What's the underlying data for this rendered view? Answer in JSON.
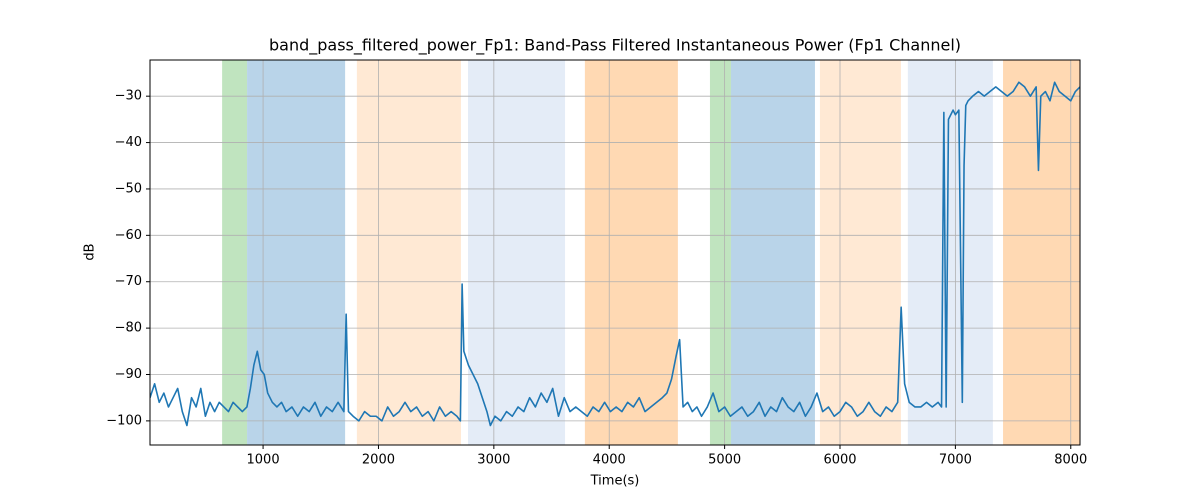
{
  "chart_data": {
    "type": "line",
    "title": "band_pass_filtered_power_Fp1: Band-Pass Filtered Instantaneous Power (Fp1 Channel)",
    "x_label": "Time(s)",
    "y_label": "dB",
    "xlim": [
      20,
      8080
    ],
    "ylim": [
      -105.2,
      -22.2
    ],
    "xticks": [
      1000,
      2000,
      3000,
      4000,
      5000,
      6000,
      7000,
      8000
    ],
    "yticks": [
      {
        "value": -100,
        "label": "−100"
      },
      {
        "value": -90,
        "label": "−90"
      },
      {
        "value": -80,
        "label": "−80"
      },
      {
        "value": -70,
        "label": "−70"
      },
      {
        "value": -60,
        "label": "−60"
      },
      {
        "value": -50,
        "label": "−50"
      },
      {
        "value": -40,
        "label": "−40"
      },
      {
        "value": -30,
        "label": "−30"
      }
    ],
    "grid": true,
    "spans": [
      {
        "start": 645,
        "end": 861,
        "color": "#c0e4bf"
      },
      {
        "start": 861,
        "end": 1711,
        "color": "#b9d4e9"
      },
      {
        "start": 1813,
        "end": 2715,
        "color": "#ffe9d4"
      },
      {
        "start": 2776,
        "end": 3617,
        "color": "#e4ecf7"
      },
      {
        "start": 3789,
        "end": 4595,
        "color": "#ffd9b3"
      },
      {
        "start": 4873,
        "end": 5055,
        "color": "#c0e4bf"
      },
      {
        "start": 5055,
        "end": 5783,
        "color": "#b9d4e9"
      },
      {
        "start": 5826,
        "end": 6528,
        "color": "#ffe9d4"
      },
      {
        "start": 6588,
        "end": 7325,
        "color": "#e4ecf7"
      },
      {
        "start": 7413,
        "end": 8080,
        "color": "#ffd9b3"
      }
    ],
    "x": [
      20,
      60,
      100,
      140,
      180,
      220,
      260,
      300,
      340,
      380,
      420,
      460,
      500,
      540,
      580,
      620,
      660,
      700,
      740,
      780,
      820,
      860,
      890,
      920,
      950,
      980,
      1010,
      1040,
      1080,
      1120,
      1160,
      1200,
      1250,
      1300,
      1350,
      1400,
      1450,
      1500,
      1550,
      1600,
      1650,
      1700,
      1720,
      1740,
      1780,
      1830,
      1880,
      1930,
      1980,
      2030,
      2080,
      2130,
      2180,
      2230,
      2280,
      2330,
      2380,
      2430,
      2480,
      2530,
      2580,
      2630,
      2680,
      2710,
      2725,
      2740,
      2780,
      2820,
      2860,
      2900,
      2940,
      2970,
      3010,
      3060,
      3110,
      3160,
      3210,
      3260,
      3310,
      3360,
      3410,
      3460,
      3510,
      3560,
      3610,
      3660,
      3710,
      3760,
      3810,
      3860,
      3910,
      3960,
      4010,
      4060,
      4110,
      4160,
      4210,
      4260,
      4310,
      4360,
      4410,
      4460,
      4500,
      4540,
      4580,
      4610,
      4640,
      4680,
      4720,
      4760,
      4800,
      4850,
      4900,
      4950,
      5000,
      5050,
      5100,
      5150,
      5200,
      5250,
      5300,
      5350,
      5400,
      5450,
      5500,
      5550,
      5600,
      5650,
      5700,
      5750,
      5800,
      5850,
      5900,
      5950,
      6000,
      6050,
      6100,
      6150,
      6200,
      6250,
      6300,
      6350,
      6400,
      6450,
      6500,
      6530,
      6560,
      6600,
      6650,
      6700,
      6750,
      6800,
      6850,
      6880,
      6900,
      6920,
      6940,
      6960,
      6980,
      7000,
      7030,
      7060,
      7075,
      7090,
      7110,
      7150,
      7200,
      7250,
      7300,
      7350,
      7400,
      7450,
      7500,
      7550,
      7600,
      7650,
      7700,
      7720,
      7740,
      7780,
      7820,
      7860,
      7900,
      7950,
      8000,
      8040,
      8080
    ],
    "series": [
      {
        "color": "#1f77b4",
        "values": [
          -95,
          -92,
          -96,
          -94,
          -97,
          -95,
          -93,
          -98,
          -101,
          -95,
          -97,
          -93,
          -99,
          -96,
          -98,
          -96,
          -97,
          -98,
          -96,
          -97,
          -98,
          -97,
          -93,
          -88,
          -85,
          -89,
          -90,
          -94,
          -96,
          -97,
          -96,
          -98,
          -97,
          -99,
          -97,
          -98,
          -96,
          -99,
          -97,
          -98,
          -96,
          -98,
          -77,
          -98,
          -99,
          -100,
          -98,
          -99,
          -99,
          -100,
          -97,
          -99,
          -98,
          -96,
          -98,
          -97,
          -99,
          -98,
          -100,
          -97,
          -99,
          -98,
          -99,
          -100,
          -70.5,
          -85,
          -88,
          -90,
          -92,
          -95,
          -98,
          -101,
          -99,
          -100,
          -98,
          -99,
          -97,
          -98,
          -95,
          -97,
          -94,
          -96,
          -93,
          -99,
          -95,
          -98,
          -97,
          -98,
          -99,
          -97,
          -98,
          -96,
          -98,
          -97,
          -98,
          -96,
          -97,
          -95,
          -98,
          -97,
          -96,
          -95,
          -94,
          -91,
          -86,
          -82.5,
          -97,
          -96,
          -98,
          -97,
          -99,
          -97,
          -94,
          -98,
          -97,
          -99,
          -98,
          -97,
          -99,
          -98,
          -96,
          -99,
          -97,
          -98,
          -95,
          -97,
          -98,
          -96,
          -99,
          -97,
          -94,
          -98,
          -97,
          -99,
          -98,
          -96,
          -97,
          -99,
          -98,
          -96,
          -98,
          -99,
          -97,
          -98,
          -96,
          -75.5,
          -92,
          -96,
          -97,
          -97,
          -96,
          -97,
          -96,
          -97,
          -33.5,
          -97,
          -35,
          -34,
          -33,
          -34,
          -33,
          -96,
          -45,
          -32,
          -31,
          -30,
          -29,
          -30,
          -29,
          -28,
          -29,
          -30,
          -29,
          -27,
          -28,
          -30,
          -28,
          -46,
          -30,
          -29,
          -31,
          -27,
          -29,
          -30,
          -31,
          -29,
          -28
        ]
      }
    ]
  }
}
